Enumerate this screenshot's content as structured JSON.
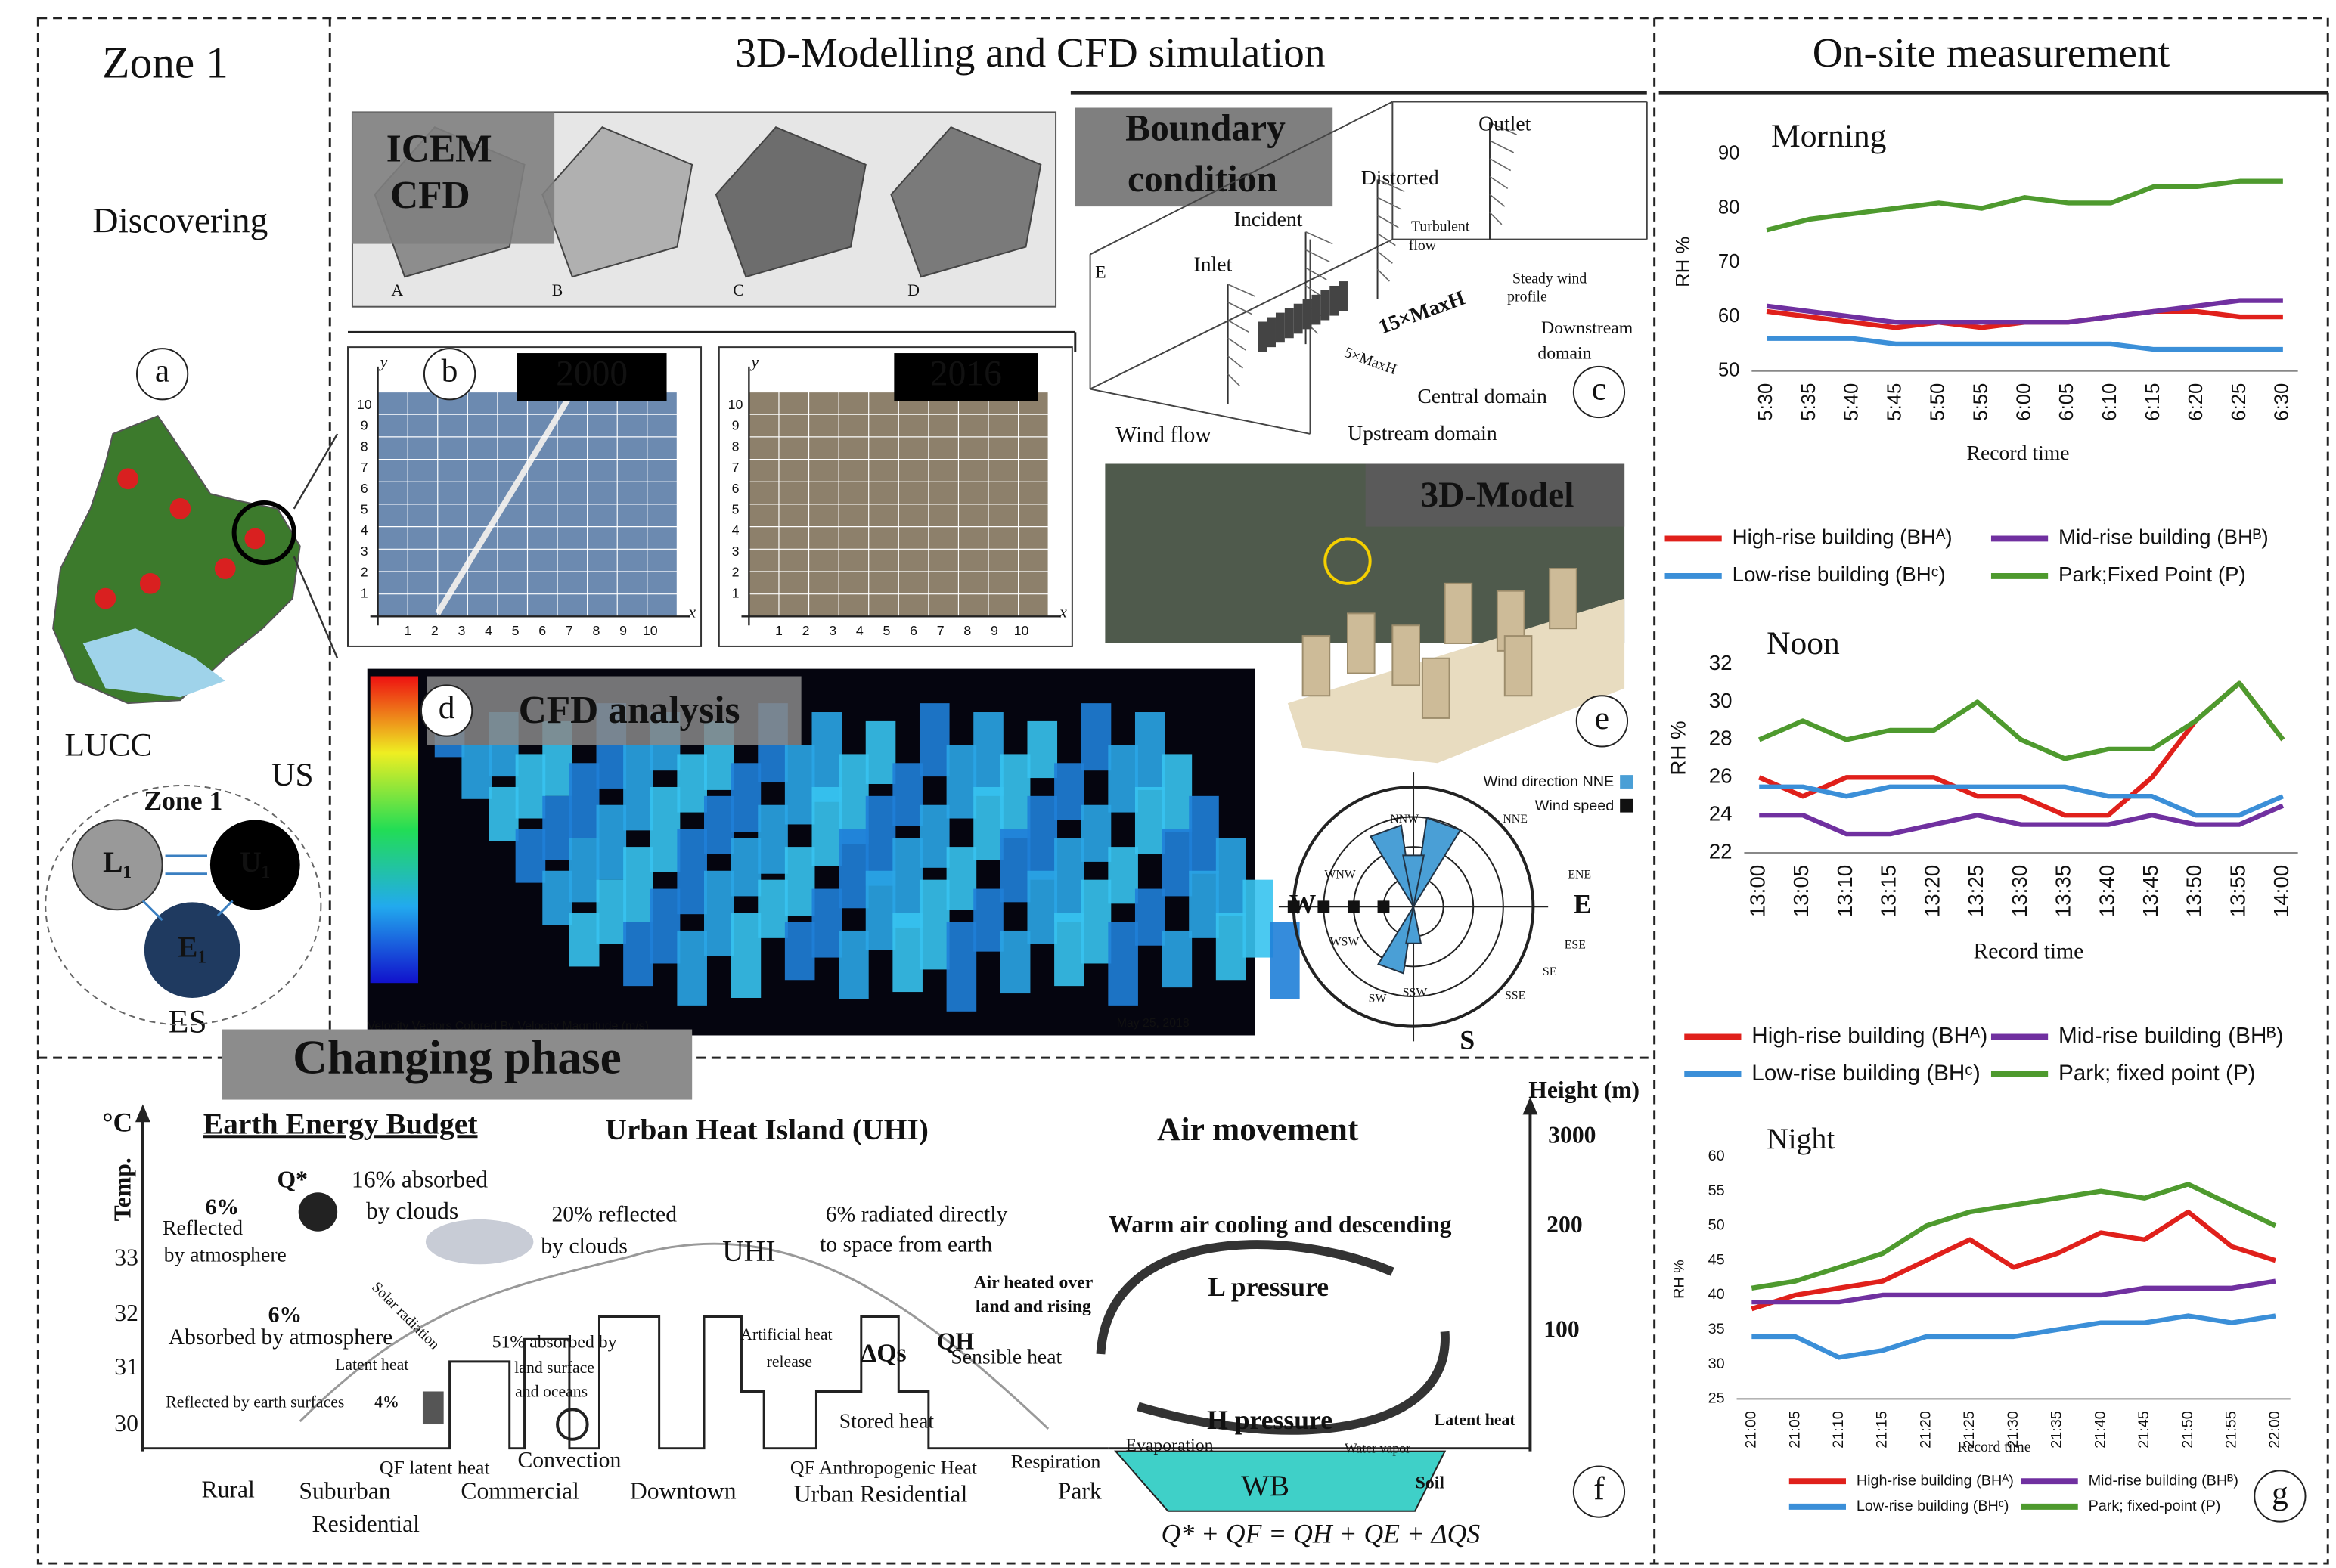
{
  "labels": {
    "zone1_title": "Zone 1",
    "discovering": "Discovering",
    "panel_a": "a",
    "lucc": "LUCC",
    "us": "US",
    "es": "ES",
    "zone1_cycle": "Zone 1",
    "l1": "L₁",
    "u1": "U₁",
    "e1": "E₁",
    "modelling_title": "3D-Modelling and CFD simulation",
    "measurement_title": "On-site measurement",
    "icem": "ICEM",
    "cfd": "CFD",
    "mesh_a": "A",
    "mesh_b": "B",
    "mesh_c": "C",
    "mesh_d": "D",
    "panel_b": "b",
    "year_2000": "2000",
    "year_2016": "2016",
    "map_x": "x",
    "map_y": "y",
    "boundary_1": "Boundary",
    "boundary_2": "condition",
    "outlet": "Outlet",
    "distorted": "Distorted",
    "incident": "Incident",
    "turbulent_1": "Turbulent",
    "turbulent_2": "flow",
    "inlet": "Inlet",
    "box_e": "E",
    "steady_1": "Steady wind",
    "steady_2": "profile",
    "maxh_15": "15×MaxH",
    "downstream_1": "Downstream",
    "downstream_2": "domain",
    "maxh_5": "5×MaxH",
    "central": "Central domain",
    "panel_c": "c",
    "wind_flow": "Wind flow",
    "upstream": "Upstream domain",
    "model_3d": "3D-Model",
    "panel_e": "e",
    "panel_d": "d",
    "cfd_analysis": "CFD analysis",
    "cfd_footer": "Velocity Vectors Colored By Velocity Magnitude (m/s)",
    "cfd_date": "May 25, 2018",
    "wind_dir": "Wind direction NNE",
    "wind_speed": "Wind speed",
    "rose_w": "W",
    "rose_e": "E",
    "rose_s": "S",
    "rose_nnw": "NNW",
    "rose_nne": "NNE",
    "rose_ene": "ENE",
    "rose_wnw": "WNW",
    "rose_wsw": "WSW",
    "rose_ese": "ESE",
    "rose_sw": "SW",
    "rose_se": "SE",
    "rose_ssw": "SSW",
    "rose_sse": "SSE",
    "changing": "Changing phase",
    "deg_c": "°C",
    "temp": "Temp.",
    "eeb": "Earth Energy Budget",
    "uhi_title": "Urban Heat Island (UHI)",
    "air_movement": "Air movement",
    "height": "Height (m)",
    "h3000": "3000",
    "h200": "200",
    "h100": "100",
    "t33": "33",
    "t32": "32",
    "t31": "31",
    "t30": "30",
    "qstar": "Q*",
    "abs16_1": "16% absorbed",
    "abs16_2": "by clouds",
    "r6_1": "6%",
    "r6_2": "Reflected",
    "r6_3": "by atmosphere",
    "ref20_1": "20% reflected",
    "ref20_2": "by clouds",
    "rad6_1": "6% radiated directly",
    "rad6_2": "to space from earth",
    "uhi": "UHI",
    "warm_air": "Warm air cooling and descending",
    "heated_1": "Air heated over",
    "heated_2": "land and rising",
    "l_pressure": "L pressure",
    "abs6_1": "6%",
    "abs6_2": "Absorbed by atmosphere",
    "solar": "Solar radiation",
    "latent_1": "Latent heat",
    "abs51_1": "51% absorbed by",
    "abs51_2": "land surface",
    "abs51_3": "and oceans",
    "artificial_1": "Artificial heat",
    "artificial_2": "release",
    "dqs": "ΔQs",
    "stored": "Stored heat",
    "qh": "QH",
    "sensible": "Sensible heat",
    "reflected_earth": "Reflected by earth surfaces",
    "p4": "4%",
    "h_pressure": "H pressure",
    "latent_2": "Latent heat",
    "evaporation": "Evaporation",
    "water_vapor": "Water vapor",
    "qf_latent": "QF latent heat",
    "convection": "Convection",
    "qf_anthro": "QF Anthropogenic Heat",
    "respiration": "Respiration",
    "soil": "Soil",
    "wb": "WB",
    "rural": "Rural",
    "suburban_1": "Suburban",
    "suburban_2": "Residential",
    "commercial": "Commercial",
    "downtown": "Downtown",
    "urban_res": "Urban Residential",
    "park": "Park",
    "panel_f": "f",
    "equation": "Q* + QF = QH + QE + ΔQS",
    "panel_g": "g"
  },
  "map_ticks": [
    1,
    2,
    3,
    4,
    5,
    6,
    7,
    8,
    9,
    10
  ],
  "chart_data": [
    {
      "type": "line",
      "title": "Morning",
      "ylabel": "RH %",
      "xlabel": "Record time",
      "categories": [
        "5:30",
        "5:35",
        "5:40",
        "5:45",
        "5:50",
        "5:55",
        "6:00",
        "6:05",
        "6:10",
        "6:15",
        "6:20",
        "6:25",
        "6:30"
      ],
      "ylim": [
        50,
        90
      ],
      "yticks": [
        50,
        60,
        70,
        80,
        90
      ],
      "grid": false,
      "series": [
        {
          "name": "High-rise building (BHᴬ)",
          "color": "#e0201b",
          "values": [
            61,
            60,
            59,
            58,
            59,
            58,
            59,
            59,
            60,
            61,
            61,
            60,
            60
          ]
        },
        {
          "name": "Mid-rise building (BHᴮ)",
          "color": "#7030a0",
          "values": [
            62,
            61,
            60,
            59,
            59,
            59,
            59,
            59,
            60,
            61,
            62,
            63,
            63
          ]
        },
        {
          "name": "Low-rise building (BHᶜ)",
          "color": "#3b8fd8",
          "values": [
            56,
            56,
            56,
            55,
            55,
            55,
            55,
            55,
            55,
            54,
            54,
            54,
            54
          ]
        },
        {
          "name": "Park;Fixed Point (P)",
          "color": "#4e9a2e",
          "values": [
            76,
            78,
            79,
            80,
            81,
            80,
            82,
            81,
            81,
            84,
            84,
            85,
            85
          ]
        }
      ]
    },
    {
      "type": "line",
      "title": "Noon",
      "ylabel": "RH %",
      "xlabel": "Record time",
      "categories": [
        "13:00",
        "13:05",
        "13:10",
        "13:15",
        "13:20",
        "13:25",
        "13:30",
        "13:35",
        "13:40",
        "13:45",
        "13:50",
        "13:55",
        "14:00"
      ],
      "ylim": [
        22,
        32
      ],
      "yticks": [
        22,
        24,
        26,
        28,
        30,
        32
      ],
      "grid": false,
      "series": [
        {
          "name": "High-rise building (BHᴬ)",
          "color": "#e0201b",
          "values": [
            26,
            25,
            26,
            26,
            26,
            25,
            25,
            24,
            24,
            26,
            29,
            31,
            28
          ]
        },
        {
          "name": "Mid-rise building (BHᴮ)",
          "color": "#7030a0",
          "values": [
            24,
            24,
            23,
            23,
            23.5,
            24,
            23.5,
            23.5,
            23.5,
            24,
            23.5,
            23.5,
            24.5
          ]
        },
        {
          "name": "Low-rise building (BHᶜ)",
          "color": "#3b8fd8",
          "values": [
            25.5,
            25.5,
            25,
            25.5,
            25.5,
            25.5,
            25.5,
            25.5,
            25,
            25,
            24,
            24,
            25
          ]
        },
        {
          "name": "Park; fixed point (P)",
          "color": "#4e9a2e",
          "values": [
            28,
            29,
            28,
            28.5,
            28.5,
            30,
            28,
            27,
            27.5,
            27.5,
            29,
            31,
            28
          ]
        }
      ]
    },
    {
      "type": "line",
      "title": "Night",
      "ylabel": "RH %",
      "xlabel": "Record time",
      "categories": [
        "21:00",
        "21:05",
        "21:10",
        "21:15",
        "21:20",
        "21:25",
        "21:30",
        "21:35",
        "21:40",
        "21:45",
        "21:50",
        "21:55",
        "22:00"
      ],
      "ylim": [
        25,
        60
      ],
      "yticks": [
        25,
        30,
        35,
        40,
        45,
        50,
        55,
        60
      ],
      "grid": false,
      "series": [
        {
          "name": "High-rise building (BHᴬ)",
          "color": "#e0201b",
          "values": [
            38,
            40,
            41,
            42,
            45,
            48,
            44,
            46,
            49,
            48,
            52,
            47,
            45
          ]
        },
        {
          "name": "Mid-rise building (BHᴮ)",
          "color": "#7030a0",
          "values": [
            39,
            39,
            39,
            40,
            40,
            40,
            40,
            40,
            40,
            41,
            41,
            41,
            42
          ]
        },
        {
          "name": "Low-rise building (BHᶜ)",
          "color": "#3b8fd8",
          "values": [
            34,
            34,
            31,
            32,
            34,
            34,
            34,
            35,
            36,
            36,
            37,
            36,
            37
          ]
        },
        {
          "name": "Park; fixed-point (P)",
          "color": "#4e9a2e",
          "values": [
            41,
            42,
            44,
            46,
            50,
            52,
            53,
            54,
            55,
            54,
            56,
            53,
            50
          ]
        }
      ]
    }
  ]
}
